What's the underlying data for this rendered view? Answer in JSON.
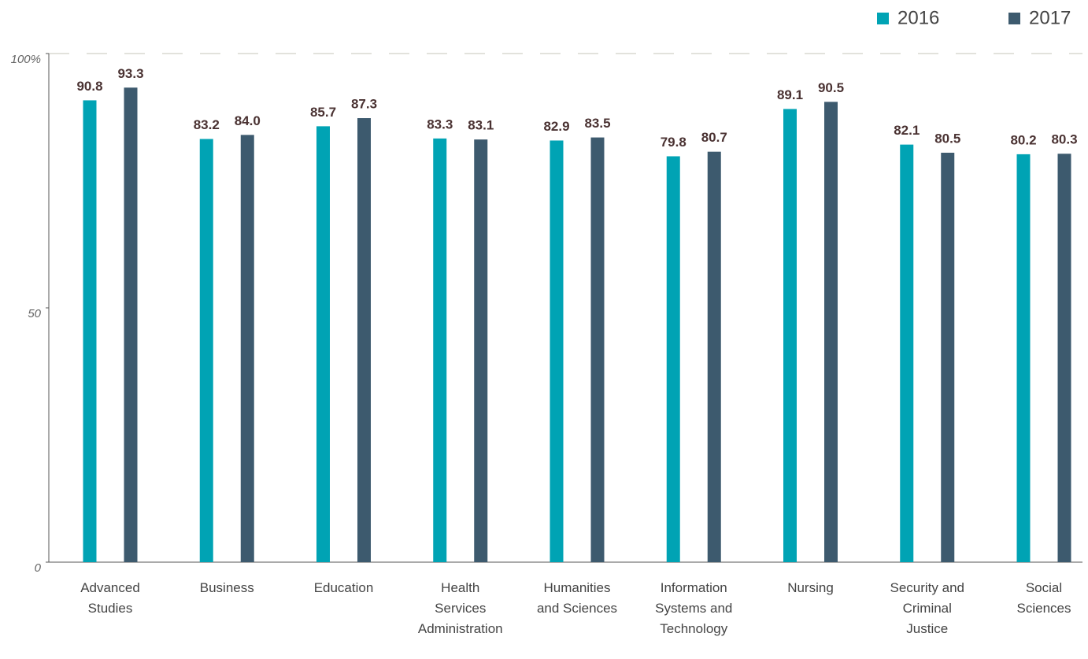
{
  "chart_data": {
    "type": "bar",
    "categories": [
      "Advanced Studies",
      "Business",
      "Education",
      "Health Services Administration",
      "Humanities and Sciences",
      "Information Systems and Technology",
      "Nursing",
      "Security and Criminal Justice",
      "Social Sciences"
    ],
    "series": [
      {
        "name": "2016",
        "color": "#00a3b4",
        "values": [
          90.8,
          83.2,
          85.7,
          83.3,
          82.9,
          79.8,
          89.1,
          82.1,
          80.2
        ]
      },
      {
        "name": "2017",
        "color": "#3d5a6e",
        "values": [
          93.3,
          84.0,
          87.3,
          83.1,
          83.5,
          80.7,
          90.5,
          80.5,
          80.3
        ],
        "value_labels": [
          "93.3",
          "84.0",
          "87.3",
          "83.1",
          "83.5",
          "80.7",
          "90.5",
          "80.5",
          "80.3"
        ]
      }
    ],
    "ylim": [
      0,
      100
    ],
    "yticks": [
      0,
      50,
      {
        "value": 100,
        "label": "100%"
      }
    ],
    "legend": "top-right"
  }
}
